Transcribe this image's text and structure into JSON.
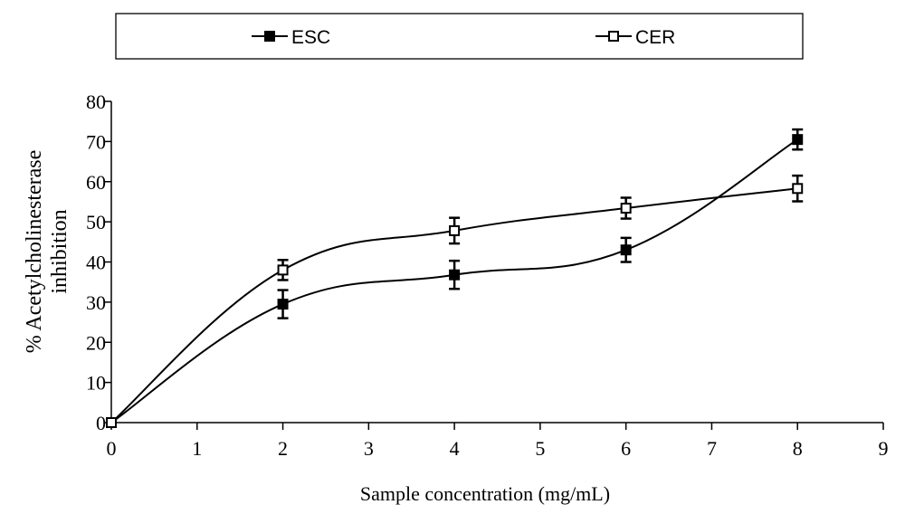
{
  "chart_data": {
    "type": "line",
    "title": "",
    "xlabel": "Sample concentration (mg/mL)",
    "ylabel_lines": [
      "% Acetylcholinesterase",
      "inhibition"
    ],
    "xlim": [
      0,
      9
    ],
    "ylim": [
      0,
      80
    ],
    "xticks": [
      0,
      1,
      2,
      3,
      4,
      5,
      6,
      7,
      8,
      9
    ],
    "yticks": [
      0,
      10,
      20,
      30,
      40,
      50,
      60,
      70,
      80
    ],
    "grid": false,
    "legend_position": "top",
    "series": [
      {
        "name": "ESC",
        "marker": "filled-square",
        "color": "#000000",
        "x": [
          0,
          2,
          4,
          6,
          8
        ],
        "y": [
          0,
          29.5,
          36.8,
          43.0,
          70.5
        ],
        "error": [
          0,
          3.5,
          3.5,
          3.0,
          2.5
        ]
      },
      {
        "name": "CER",
        "marker": "open-square",
        "color": "#000000",
        "x": [
          0,
          2,
          4,
          6,
          8
        ],
        "y": [
          0,
          38.0,
          47.8,
          53.4,
          58.3
        ],
        "error": [
          0,
          2.5,
          3.2,
          2.6,
          3.2
        ]
      }
    ]
  }
}
